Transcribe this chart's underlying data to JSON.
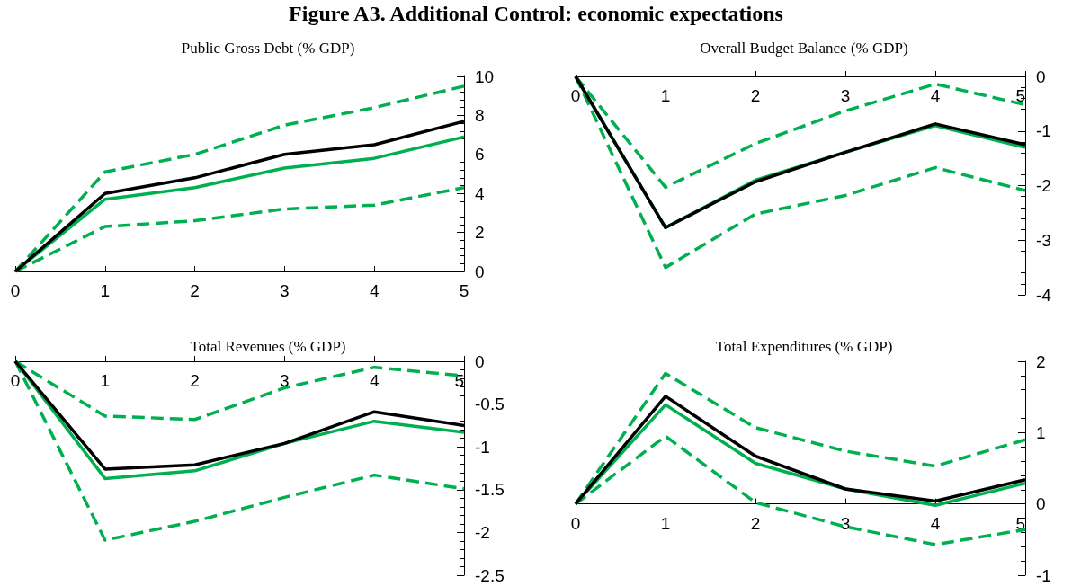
{
  "chart_data": [
    {
      "type": "line",
      "title": "Public Gross Debt (% GDP)",
      "annotations": [
        "Figure A3. Additional Control: economic expectations"
      ],
      "x": [
        0,
        1,
        2,
        3,
        4,
        5
      ],
      "xlim": [
        0,
        5
      ],
      "xticks": [
        0,
        1,
        2,
        3,
        4,
        5
      ],
      "ylim": [
        0,
        10
      ],
      "yticks": [
        0,
        2,
        4,
        6,
        8,
        10
      ],
      "grid": false,
      "marker": "none",
      "series": [
        {
          "color": "#00b050",
          "line_style": "dashed",
          "values": [
            0,
            5.1,
            6.0,
            7.5,
            8.4,
            9.5
          ]
        },
        {
          "color": "#00b050",
          "line_style": "dashed",
          "values": [
            0,
            2.3,
            2.6,
            3.2,
            3.4,
            4.3
          ]
        },
        {
          "color": "#00b050",
          "line_style": "solid",
          "values": [
            0,
            3.7,
            4.3,
            5.3,
            5.8,
            6.9
          ]
        },
        {
          "color": "#000000",
          "line_style": "solid",
          "values": [
            0,
            4.0,
            4.8,
            6.0,
            6.5,
            7.7
          ]
        }
      ]
    },
    {
      "type": "line",
      "title": "Overall Budget Balance (% GDP)",
      "x": [
        0,
        1,
        2,
        3,
        4,
        5
      ],
      "xlim": [
        0,
        5
      ],
      "xticks": [
        0,
        1,
        2,
        3,
        4,
        5
      ],
      "ylim": [
        -4,
        0
      ],
      "yticks": [
        -4,
        -3,
        -2,
        -1,
        0
      ],
      "grid": false,
      "marker": "none",
      "series": [
        {
          "color": "#00b050",
          "line_style": "dashed",
          "values": [
            0,
            -2.03,
            -1.23,
            -0.63,
            -0.14,
            -0.52
          ]
        },
        {
          "color": "#00b050",
          "line_style": "dashed",
          "values": [
            0,
            -3.5,
            -2.52,
            -2.18,
            -1.67,
            -2.09
          ]
        },
        {
          "color": "#00b050",
          "line_style": "solid",
          "values": [
            0,
            -2.77,
            -1.9,
            -1.39,
            -0.9,
            -1.3
          ]
        },
        {
          "color": "#000000",
          "line_style": "solid",
          "values": [
            0,
            -2.77,
            -1.93,
            -1.39,
            -0.87,
            -1.25
          ]
        }
      ]
    },
    {
      "type": "line",
      "title": "Total Revenues (% GDP)",
      "x": [
        0,
        1,
        2,
        3,
        4,
        5
      ],
      "xlim": [
        0,
        5
      ],
      "xticks": [
        0,
        1,
        2,
        3,
        4,
        5
      ],
      "ylim": [
        -2.5,
        0
      ],
      "yticks": [
        -2.5,
        -2,
        -1.5,
        -1,
        -0.5,
        0
      ],
      "grid": false,
      "marker": "none",
      "series": [
        {
          "color": "#00b050",
          "line_style": "dashed",
          "values": [
            0,
            -0.64,
            -0.68,
            -0.31,
            -0.07,
            -0.17
          ]
        },
        {
          "color": "#00b050",
          "line_style": "dashed",
          "values": [
            0,
            -2.09,
            -1.87,
            -1.59,
            -1.33,
            -1.49
          ]
        },
        {
          "color": "#00b050",
          "line_style": "solid",
          "values": [
            0,
            -1.37,
            -1.28,
            -0.96,
            -0.7,
            -0.83
          ]
        },
        {
          "color": "#000000",
          "line_style": "solid",
          "values": [
            0,
            -1.26,
            -1.21,
            -0.96,
            -0.59,
            -0.75
          ]
        }
      ]
    },
    {
      "type": "line",
      "title": "Total Expenditures (% GDP)",
      "x": [
        0,
        1,
        2,
        3,
        4,
        5
      ],
      "xlim": [
        0,
        5
      ],
      "xticks": [
        0,
        1,
        2,
        3,
        4,
        5
      ],
      "ylim": [
        -1,
        2
      ],
      "yticks": [
        -1,
        0,
        1,
        2
      ],
      "grid": false,
      "marker": "none",
      "series": [
        {
          "color": "#00b050",
          "line_style": "dashed",
          "values": [
            0,
            1.83,
            1.07,
            0.74,
            0.53,
            0.9
          ]
        },
        {
          "color": "#00b050",
          "line_style": "dashed",
          "values": [
            0,
            0.95,
            0.02,
            -0.32,
            -0.57,
            -0.36
          ]
        },
        {
          "color": "#00b050",
          "line_style": "solid",
          "values": [
            0,
            1.39,
            0.57,
            0.21,
            -0.02,
            0.29
          ]
        },
        {
          "color": "#000000",
          "line_style": "solid",
          "values": [
            0,
            1.51,
            0.67,
            0.21,
            0.04,
            0.34
          ]
        }
      ]
    }
  ]
}
